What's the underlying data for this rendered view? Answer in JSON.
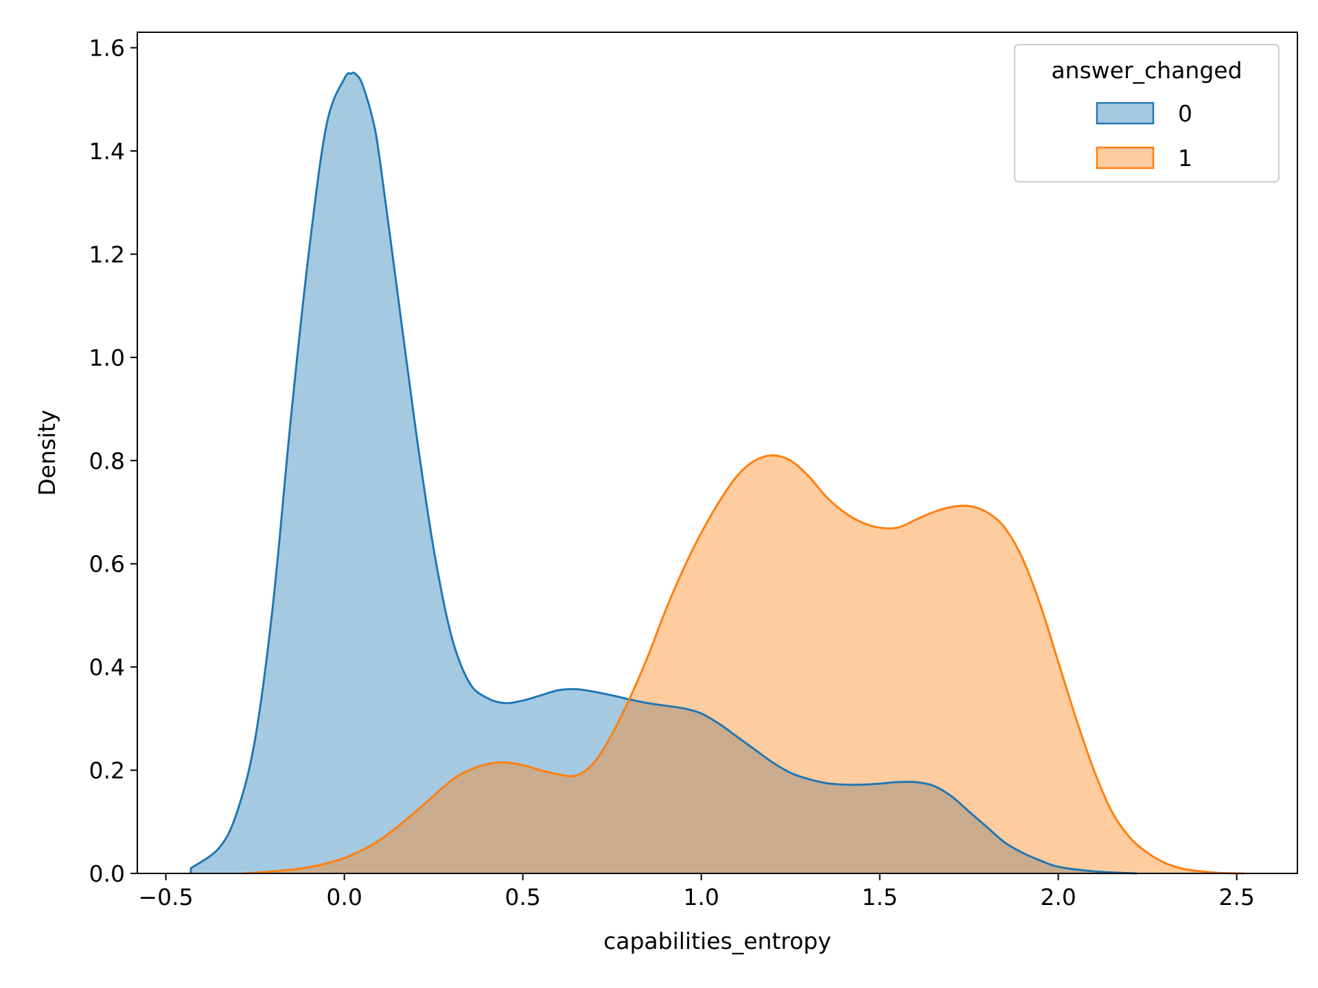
{
  "chart_data": {
    "type": "area",
    "title": "",
    "xlabel": "capabilities_entropy",
    "ylabel": "Density",
    "xlim": [
      -0.58,
      2.67
    ],
    "ylim": [
      0,
      1.63
    ],
    "xticks": [
      -0.5,
      0.0,
      0.5,
      1.0,
      1.5,
      2.0,
      2.5
    ],
    "xtick_labels": [
      "−0.5",
      "0.0",
      "0.5",
      "1.0",
      "1.5",
      "2.0",
      "2.5"
    ],
    "yticks": [
      0.0,
      0.2,
      0.4,
      0.6,
      0.8,
      1.0,
      1.2,
      1.4,
      1.6
    ],
    "ytick_labels": [
      "0.0",
      "0.2",
      "0.4",
      "0.6",
      "0.8",
      "1.0",
      "1.2",
      "1.4",
      "1.6"
    ],
    "grid": false,
    "legend": {
      "title": "answer_changed",
      "position": "top-right"
    },
    "series": [
      {
        "name": "0",
        "color": "#1f77b4",
        "fill": "#1f77b4",
        "fill_opacity": 0.4,
        "x": [
          -0.43,
          -0.35,
          -0.3,
          -0.25,
          -0.2,
          -0.15,
          -0.1,
          -0.05,
          0.0,
          0.02,
          0.03,
          0.05,
          0.08,
          0.1,
          0.15,
          0.2,
          0.25,
          0.3,
          0.35,
          0.4,
          0.45,
          0.5,
          0.55,
          0.6,
          0.65,
          0.7,
          0.75,
          0.8,
          0.85,
          0.9,
          0.95,
          1.0,
          1.05,
          1.1,
          1.15,
          1.2,
          1.25,
          1.3,
          1.35,
          1.4,
          1.45,
          1.5,
          1.55,
          1.6,
          1.65,
          1.7,
          1.75,
          1.8,
          1.85,
          1.9,
          1.95,
          2.0,
          2.1,
          2.22
        ],
        "y": [
          0.01,
          0.05,
          0.12,
          0.26,
          0.52,
          0.88,
          1.2,
          1.45,
          1.54,
          1.55,
          1.55,
          1.53,
          1.46,
          1.38,
          1.12,
          0.86,
          0.63,
          0.46,
          0.37,
          0.34,
          0.33,
          0.335,
          0.345,
          0.355,
          0.357,
          0.352,
          0.345,
          0.337,
          0.33,
          0.325,
          0.32,
          0.31,
          0.29,
          0.265,
          0.24,
          0.215,
          0.195,
          0.183,
          0.175,
          0.172,
          0.172,
          0.174,
          0.177,
          0.177,
          0.17,
          0.15,
          0.12,
          0.09,
          0.06,
          0.04,
          0.025,
          0.013,
          0.004,
          0.0
        ]
      },
      {
        "name": "1",
        "color": "#ff7f0e",
        "fill": "#ff7f0e",
        "fill_opacity": 0.4,
        "x": [
          -0.28,
          -0.2,
          -0.1,
          0.0,
          0.1,
          0.2,
          0.3,
          0.35,
          0.4,
          0.45,
          0.5,
          0.55,
          0.6,
          0.65,
          0.7,
          0.75,
          0.8,
          0.85,
          0.9,
          0.95,
          1.0,
          1.05,
          1.1,
          1.15,
          1.2,
          1.25,
          1.3,
          1.35,
          1.4,
          1.45,
          1.5,
          1.55,
          1.6,
          1.65,
          1.7,
          1.75,
          1.8,
          1.85,
          1.9,
          1.95,
          2.0,
          2.05,
          2.1,
          2.15,
          2.2,
          2.25,
          2.3,
          2.35,
          2.4,
          2.45,
          2.52
        ],
        "y": [
          0.0,
          0.004,
          0.012,
          0.03,
          0.065,
          0.12,
          0.18,
          0.2,
          0.212,
          0.215,
          0.21,
          0.2,
          0.192,
          0.19,
          0.215,
          0.27,
          0.34,
          0.42,
          0.51,
          0.59,
          0.66,
          0.72,
          0.77,
          0.8,
          0.81,
          0.8,
          0.77,
          0.73,
          0.7,
          0.68,
          0.67,
          0.67,
          0.685,
          0.7,
          0.71,
          0.712,
          0.7,
          0.67,
          0.61,
          0.52,
          0.41,
          0.3,
          0.2,
          0.12,
          0.07,
          0.04,
          0.02,
          0.009,
          0.004,
          0.001,
          0.0
        ]
      }
    ]
  }
}
